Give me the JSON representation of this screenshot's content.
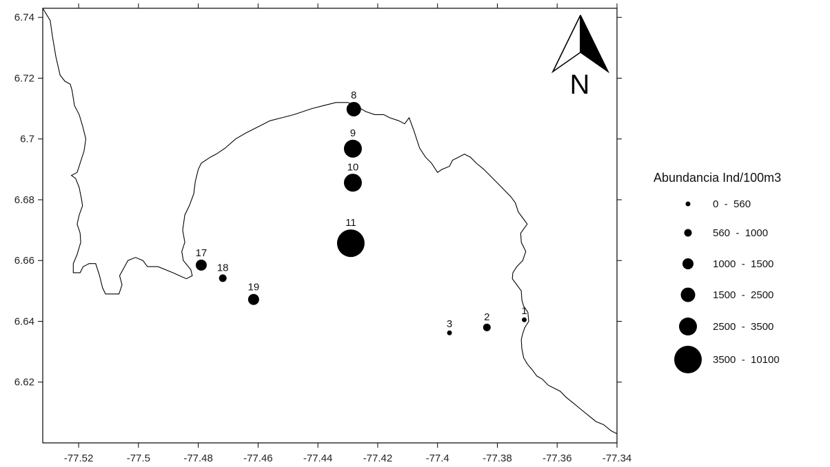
{
  "map": {
    "x_axis": {
      "min": -77.532,
      "max": -77.34,
      "ticks": [
        "-77.52",
        "-77.5",
        "-77.48",
        "-77.46",
        "-77.44",
        "-77.42",
        "-77.4",
        "-77.38",
        "-77.36",
        "-77.34"
      ]
    },
    "y_axis": {
      "min": 6.6,
      "max": 6.743,
      "ticks": [
        "6.62",
        "6.64",
        "6.66",
        "6.68",
        "6.7",
        "6.72",
        "6.74"
      ]
    },
    "coastline": [
      [
        -77.532,
        6.743
      ],
      [
        -77.5295,
        6.739
      ],
      [
        -77.5288,
        6.734
      ],
      [
        -77.5276,
        6.727
      ],
      [
        -77.5262,
        6.721
      ],
      [
        -77.5246,
        6.719
      ],
      [
        -77.5228,
        6.718
      ],
      [
        -77.5222,
        6.716
      ],
      [
        -77.5214,
        6.711
      ],
      [
        -77.5198,
        6.708
      ],
      [
        -77.5186,
        6.704
      ],
      [
        -77.5176,
        6.7
      ],
      [
        -77.5182,
        6.696
      ],
      [
        -77.5205,
        6.689
      ],
      [
        -77.5224,
        6.688
      ],
      [
        -77.521,
        6.687
      ],
      [
        -77.5198,
        6.684
      ],
      [
        -77.519,
        6.68
      ],
      [
        -77.5187,
        6.678
      ],
      [
        -77.5198,
        6.675
      ],
      [
        -77.5205,
        6.672
      ],
      [
        -77.5195,
        6.669
      ],
      [
        -77.5193,
        6.666
      ],
      [
        -77.5205,
        6.662
      ],
      [
        -77.5218,
        6.659
      ],
      [
        -77.5218,
        6.656
      ],
      [
        -77.5195,
        6.656
      ],
      [
        -77.5185,
        6.658
      ],
      [
        -77.5165,
        6.659
      ],
      [
        -77.5143,
        6.659
      ],
      [
        -77.513,
        6.655
      ],
      [
        -77.512,
        6.651
      ],
      [
        -77.511,
        6.649
      ],
      [
        -77.5065,
        6.649
      ],
      [
        -77.5055,
        6.652
      ],
      [
        -77.5063,
        6.655
      ],
      [
        -77.5035,
        6.66
      ],
      [
        -77.501,
        6.661
      ],
      [
        -77.4985,
        6.66
      ],
      [
        -77.497,
        6.658
      ],
      [
        -77.4935,
        6.658
      ],
      [
        -77.4885,
        6.656
      ],
      [
        -77.484,
        6.654
      ],
      [
        -77.482,
        6.655
      ],
      [
        -77.4825,
        6.657
      ],
      [
        -77.485,
        6.66
      ],
      [
        -77.4855,
        6.663
      ],
      [
        -77.4845,
        6.666
      ],
      [
        -77.4852,
        6.67
      ],
      [
        -77.4845,
        6.675
      ],
      [
        -77.483,
        6.678
      ],
      [
        -77.4815,
        6.682
      ],
      [
        -77.481,
        6.686
      ],
      [
        -77.48,
        6.69
      ],
      [
        -77.479,
        6.692
      ],
      [
        -77.476,
        6.694
      ],
      [
        -77.474,
        6.695
      ],
      [
        -77.471,
        6.697
      ],
      [
        -77.4675,
        6.7
      ],
      [
        -77.464,
        6.702
      ],
      [
        -77.46,
        6.704
      ],
      [
        -77.456,
        6.706
      ],
      [
        -77.452,
        6.707
      ],
      [
        -77.448,
        6.708
      ],
      [
        -77.445,
        6.709
      ],
      [
        -77.442,
        6.71
      ],
      [
        -77.438,
        6.711
      ],
      [
        -77.434,
        6.712
      ],
      [
        -77.43,
        6.712
      ],
      [
        -77.4275,
        6.711
      ],
      [
        -77.424,
        6.709
      ],
      [
        -77.421,
        6.708
      ],
      [
        -77.418,
        6.708
      ],
      [
        -77.416,
        6.707
      ],
      [
        -77.413,
        6.706
      ],
      [
        -77.411,
        6.705
      ],
      [
        -77.4095,
        6.707
      ],
      [
        -77.408,
        6.703
      ],
      [
        -77.407,
        6.7
      ],
      [
        -77.406,
        6.697
      ],
      [
        -77.404,
        6.694
      ],
      [
        -77.402,
        6.692
      ],
      [
        -77.4,
        6.689
      ],
      [
        -77.3985,
        6.69
      ],
      [
        -77.396,
        6.691
      ],
      [
        -77.395,
        6.693
      ],
      [
        -77.393,
        6.694
      ],
      [
        -77.391,
        6.695
      ],
      [
        -77.389,
        6.694
      ],
      [
        -77.387,
        6.692
      ],
      [
        -77.3845,
        6.69
      ],
      [
        -77.3815,
        6.687
      ],
      [
        -77.3785,
        6.684
      ],
      [
        -77.3755,
        6.681
      ],
      [
        -77.374,
        6.679
      ],
      [
        -77.373,
        6.676
      ],
      [
        -77.3715,
        6.674
      ],
      [
        -77.37,
        6.672
      ],
      [
        -77.3722,
        6.669
      ],
      [
        -77.372,
        6.666
      ],
      [
        -77.3705,
        6.663
      ],
      [
        -77.3715,
        6.66
      ],
      [
        -77.3735,
        6.658
      ],
      [
        -77.3748,
        6.656
      ],
      [
        -77.375,
        6.654
      ],
      [
        -77.3735,
        6.652
      ],
      [
        -77.372,
        6.65
      ],
      [
        -77.3718,
        6.647
      ],
      [
        -77.3712,
        6.645
      ],
      [
        -77.3698,
        6.643
      ],
      [
        -77.3695,
        6.64
      ],
      [
        -77.3708,
        6.638
      ],
      [
        -77.3715,
        6.636
      ],
      [
        -77.372,
        6.634
      ],
      [
        -77.3718,
        6.631
      ],
      [
        -77.3712,
        6.628
      ],
      [
        -77.37,
        6.626
      ],
      [
        -77.3683,
        6.624
      ],
      [
        -77.3668,
        6.622
      ],
      [
        -77.365,
        6.621
      ],
      [
        -77.363,
        6.619
      ],
      [
        -77.361,
        6.618
      ],
      [
        -77.359,
        6.617
      ],
      [
        -77.357,
        6.615
      ],
      [
        -77.3545,
        6.613
      ],
      [
        -77.352,
        6.611
      ],
      [
        -77.3495,
        6.609
      ],
      [
        -77.347,
        6.607
      ],
      [
        -77.3445,
        6.606
      ],
      [
        -77.342,
        6.604
      ],
      [
        -77.34,
        6.603
      ]
    ],
    "stations": [
      {
        "id": "1",
        "lon": -77.371,
        "lat": 6.6405,
        "class": 0
      },
      {
        "id": "2",
        "lon": -77.3835,
        "lat": 6.638,
        "class": 1
      },
      {
        "id": "3",
        "lon": -77.396,
        "lat": 6.6362,
        "class": 0
      },
      {
        "id": "8",
        "lon": -77.428,
        "lat": 6.7098,
        "class": 3
      },
      {
        "id": "9",
        "lon": -77.4283,
        "lat": 6.6968,
        "class": 4
      },
      {
        "id": "10",
        "lon": -77.4283,
        "lat": 6.6856,
        "class": 4
      },
      {
        "id": "11",
        "lon": -77.429,
        "lat": 6.6657,
        "class": 5
      },
      {
        "id": "17",
        "lon": -77.479,
        "lat": 6.6585,
        "class": 2
      },
      {
        "id": "18",
        "lon": -77.4718,
        "lat": 6.6542,
        "class": 1
      },
      {
        "id": "19",
        "lon": -77.4615,
        "lat": 6.6472,
        "class": 2
      }
    ],
    "north_arrow": {
      "letter": "N"
    }
  },
  "legend": {
    "title": "Abundancia Ind/100m3",
    "classes": [
      {
        "range": "0  -  560"
      },
      {
        "range": "560  -  1000"
      },
      {
        "range": "1000  -  1500"
      },
      {
        "range": "1500  -  2500"
      },
      {
        "range": "2500  -  3500"
      },
      {
        "range": "3500  -  10100"
      }
    ]
  },
  "colors": {
    "marker": "#000000",
    "coastline": "#000000",
    "frame": "#000000",
    "background": "#ffffff"
  }
}
